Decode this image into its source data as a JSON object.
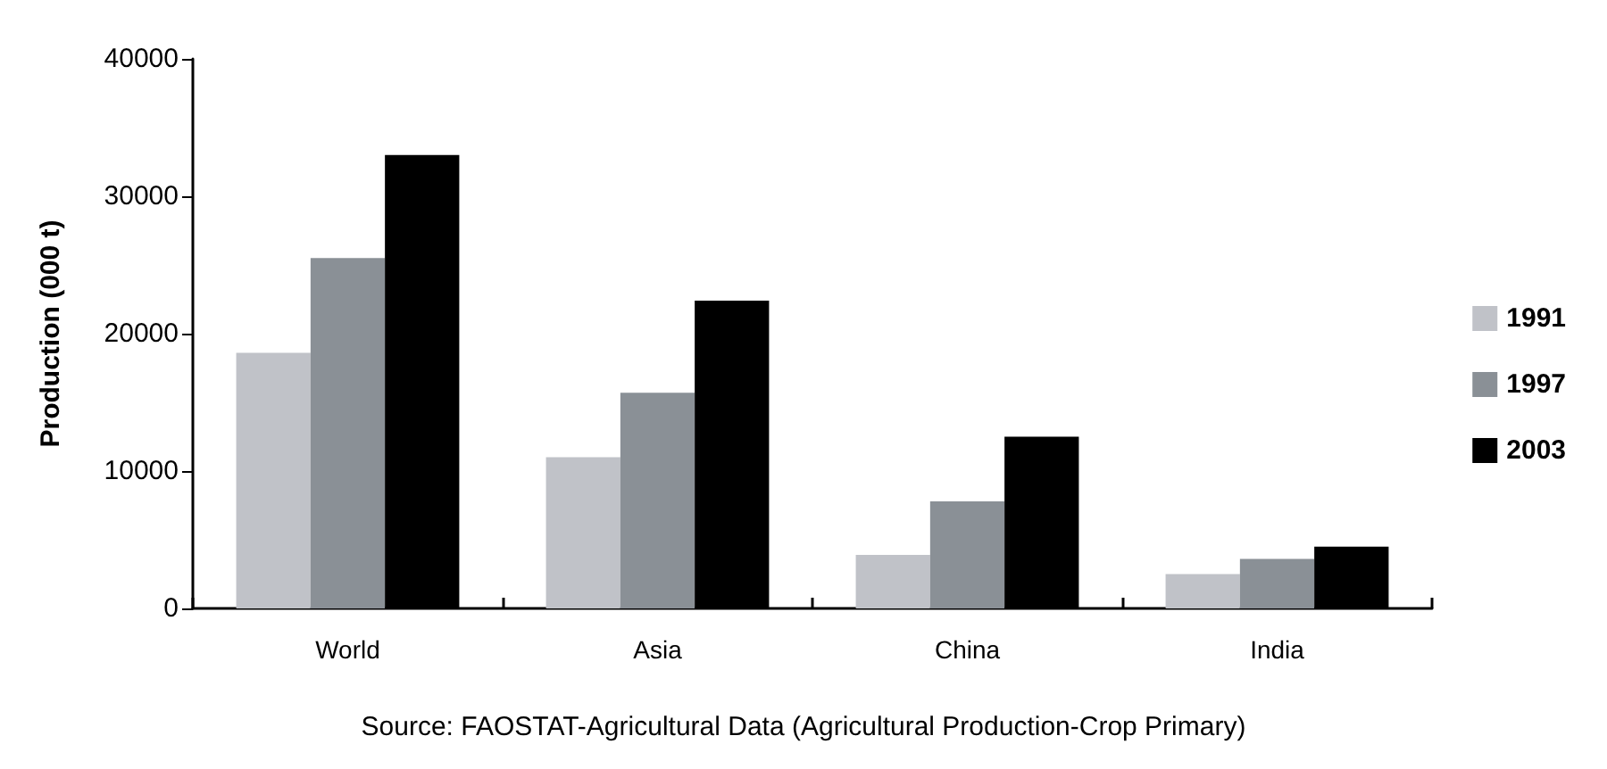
{
  "chart_data": {
    "type": "bar",
    "ylabel": "Production (000 t)",
    "categories": [
      "World",
      "Asia",
      "China",
      "India"
    ],
    "series": [
      {
        "name": "1991",
        "color": "#c0c2c8",
        "values": [
          18600,
          11000,
          3900,
          2500
        ]
      },
      {
        "name": "1997",
        "color": "#8a9096",
        "values": [
          25500,
          15700,
          7800,
          3600
        ]
      },
      {
        "name": "2003",
        "color": "#000000",
        "values": [
          33000,
          22400,
          12500,
          4500
        ]
      }
    ],
    "ylim": [
      0,
      40000
    ],
    "yticks": [
      0,
      10000,
      20000,
      30000,
      40000
    ],
    "grid": false,
    "legend": "right",
    "annotations": [
      "Source: FAOSTAT-Agricultural Data (Agricultural Production-Crop Primary)"
    ]
  }
}
